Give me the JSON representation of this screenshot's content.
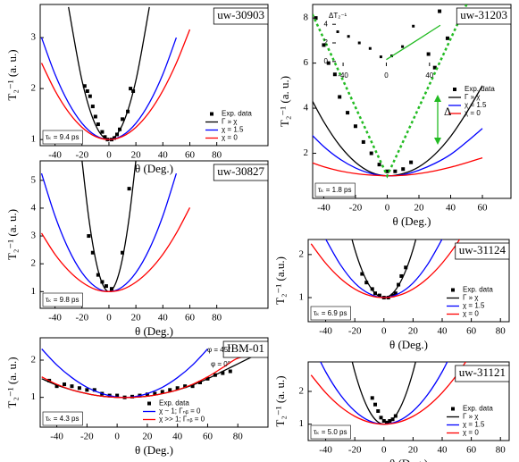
{
  "chart_data": [
    {
      "type": "line",
      "title": "uw-30903",
      "annotation": "τₖ = 9.4 ps",
      "xlabel": "θ (Deg.)",
      "ylabel": "T₂⁻¹ (a. u.)",
      "xlim": [
        -51,
        118
      ],
      "ylim": [
        0.88,
        3.65
      ],
      "xticks": [
        -40,
        -20,
        0,
        20,
        40,
        60,
        80
      ],
      "yticks": [
        1,
        2,
        3
      ],
      "legend": "lower right",
      "series": [
        {
          "name": "Exp. data",
          "color": "#000000",
          "marker": "square",
          "x": [
            -18,
            -16,
            -14,
            -12,
            -10,
            -8,
            -5,
            -3,
            -1,
            2,
            4,
            6,
            8,
            10,
            14,
            16,
            18
          ],
          "values": [
            2.05,
            1.95,
            1.85,
            1.65,
            1.45,
            1.3,
            1.15,
            1.05,
            1.0,
            1.0,
            1.03,
            1.1,
            1.2,
            1.4,
            1.55,
            2.0,
            1.95
          ]
        },
        {
          "name": "Γ » χ",
          "color": "#000000",
          "x": [
            -30,
            -20,
            -10,
            0,
            10,
            20,
            30
          ],
          "values": [
            3.6,
            2.16,
            1.29,
            1,
            1.29,
            2.16,
            3.6
          ]
        },
        {
          "name": "χ = 1.5",
          "color": "#0000ff",
          "x": [
            -50,
            -40,
            -30,
            -20,
            -10,
            0,
            10,
            20,
            30,
            40,
            50
          ],
          "values": [
            3.0,
            2.28,
            1.72,
            1.32,
            1.08,
            1,
            1.08,
            1.32,
            1.72,
            2.28,
            3.0
          ]
        },
        {
          "name": "χ = 0",
          "color": "#ff0000",
          "x": [
            -50,
            -40,
            -30,
            -20,
            -10,
            0,
            10,
            20,
            30,
            40,
            50,
            60
          ],
          "values": [
            2.5,
            1.96,
            1.54,
            1.24,
            1.06,
            1,
            1.06,
            1.24,
            1.54,
            1.96,
            2.5,
            3.16
          ]
        }
      ]
    },
    {
      "type": "line",
      "title": "uw-30827",
      "annotation": "τₖ = 9.8 ps",
      "xlabel": "θ (Deg.)",
      "ylabel": "T₂⁻¹ (a. u.)",
      "xlim": [
        -51,
        118
      ],
      "ylim": [
        0.4,
        5.7
      ],
      "xticks": [
        -40,
        -20,
        0,
        20,
        40,
        60,
        80
      ],
      "yticks": [
        1,
        2,
        3,
        4,
        5
      ],
      "series": [
        {
          "color": "#000000",
          "marker": "square",
          "x": [
            -15,
            -12,
            -8,
            -5,
            -2,
            2,
            10,
            15
          ],
          "values": [
            3.0,
            2.4,
            1.6,
            1.35,
            1.2,
            1.1,
            2.4,
            4.7
          ]
        },
        {
          "color": "#000000",
          "x": [
            -20,
            -15,
            -10,
            -5,
            0,
            5,
            10,
            15,
            20
          ],
          "values": [
            5.72,
            3.66,
            2.18,
            1.3,
            1,
            1.3,
            2.18,
            3.66,
            5.72
          ]
        },
        {
          "color": "#0000ff",
          "x": [
            -50,
            -40,
            -30,
            -20,
            -10,
            0,
            10,
            20,
            30,
            40,
            50
          ],
          "values": [
            5.25,
            3.72,
            2.53,
            1.68,
            1.17,
            1,
            1.17,
            1.68,
            2.53,
            3.72,
            5.25
          ]
        },
        {
          "color": "#ff0000",
          "x": [
            -50,
            -40,
            -30,
            -20,
            -10,
            0,
            10,
            20,
            30,
            40,
            50,
            60
          ],
          "values": [
            3.1,
            2.34,
            1.76,
            1.34,
            1.08,
            1,
            1.08,
            1.34,
            1.76,
            2.34,
            3.1,
            4.02
          ]
        }
      ]
    },
    {
      "type": "line",
      "title": "IBM-01",
      "annotation": "τₖ = 4.3 ps",
      "xlabel": "θ (Deg.)",
      "ylabel": "T₂⁻¹ (a. u.)",
      "xlim": [
        -51,
        100
      ],
      "ylim": [
        0.2,
        2.6
      ],
      "xticks": [
        -40,
        -20,
        0,
        20,
        40,
        60,
        80
      ],
      "yticks": [
        1,
        2
      ],
      "legend": "lower right",
      "notes": [
        "φ = 45°",
        "φ = 0°"
      ],
      "series": [
        {
          "name": "Exp. data",
          "color": "#000000",
          "marker": "square",
          "x": [
            -45,
            -40,
            -35,
            -30,
            -25,
            -20,
            -15,
            -10,
            -5,
            0,
            5,
            10,
            15,
            20,
            25,
            30,
            35,
            40,
            45,
            50,
            55,
            60,
            65,
            70,
            75
          ],
          "values": [
            1.45,
            1.3,
            1.35,
            1.3,
            1.25,
            1.2,
            1.2,
            1.1,
            1.05,
            1.05,
            1.0,
            1.02,
            1.05,
            1.08,
            1.1,
            1.15,
            1.2,
            1.25,
            1.3,
            1.3,
            1.4,
            1.5,
            1.6,
            1.65,
            1.7
          ]
        },
        {
          "color": "#000000",
          "x": [
            -50,
            -40,
            -30,
            -20,
            -10,
            0,
            10,
            20,
            30,
            40,
            50,
            60,
            70,
            80,
            90
          ],
          "values": [
            1.5,
            1.33,
            1.2,
            1.1,
            1.03,
            1.0,
            1.0,
            1.03,
            1.1,
            1.2,
            1.33,
            1.5,
            1.7,
            1.9,
            2.1
          ]
        },
        {
          "name": "χ ~ 1; Γₙᵦ = 0",
          "color": "#0000ff",
          "x": [
            -50,
            -40,
            -30,
            -20,
            -10,
            0,
            10,
            20,
            30,
            40,
            50,
            60
          ],
          "values": [
            2.3,
            1.87,
            1.53,
            1.27,
            1.1,
            1.01,
            1.01,
            1.1,
            1.27,
            1.53,
            1.87,
            2.3
          ]
        },
        {
          "name": "χ >> 1; Γₙᵦ = 0",
          "color": "#ff0000",
          "x": [
            -50,
            -40,
            -30,
            -20,
            -10,
            0,
            10,
            20,
            30,
            40,
            50,
            60,
            70,
            80,
            90
          ],
          "values": [
            1.55,
            1.35,
            1.2,
            1.1,
            1.03,
            1,
            1.0,
            1.03,
            1.1,
            1.2,
            1.35,
            1.55,
            1.8,
            2.05,
            2.1
          ]
        }
      ]
    },
    {
      "type": "line",
      "title": "uw-31203",
      "annotation": "τₖ = 1.8 ps",
      "xlabel": "θ (Deg.)",
      "ylabel": "T₂⁻¹ (a. u.)",
      "xlim": [
        -47,
        78
      ],
      "ylim": [
        0,
        8.6
      ],
      "xticks": [
        -40,
        -20,
        0,
        20,
        40,
        60
      ],
      "yticks": [
        2,
        4,
        6,
        8
      ],
      "legend": "right",
      "notes": [
        "Δ"
      ],
      "series": [
        {
          "name": "Exp. data",
          "color": "#000000",
          "marker": "square",
          "x": [
            -50,
            -45,
            -40,
            -37,
            -33,
            -30,
            -25,
            -20,
            -15,
            -10,
            -5,
            0,
            5,
            10,
            15,
            26,
            30,
            33,
            38
          ],
          "values": [
            7.8,
            8.0,
            6.8,
            6.0,
            5.5,
            4.5,
            3.8,
            3.2,
            2.5,
            2.0,
            1.5,
            1.2,
            1.2,
            1.3,
            1.6,
            6.4,
            5.8,
            8.3,
            7.1
          ]
        },
        {
          "name": "Γ » χ",
          "color": "#000000",
          "x": [
            -50,
            -40,
            -30,
            -20,
            -10,
            0,
            10,
            20,
            30,
            40,
            50,
            60
          ],
          "values": [
            4.7,
            3.4,
            2.35,
            1.6,
            1.15,
            1,
            1.1,
            1.4,
            1.95,
            2.75,
            3.8,
            5.0
          ]
        },
        {
          "name": "χ = 1.5",
          "color": "#0000ff",
          "x": [
            -50,
            -40,
            -30,
            -20,
            -10,
            0,
            10,
            20,
            30,
            40,
            50,
            60
          ],
          "values": [
            3.0,
            2.3,
            1.75,
            1.35,
            1.1,
            1,
            1.05,
            1.25,
            1.55,
            1.95,
            2.5,
            3.1
          ]
        },
        {
          "name": "χ = 0",
          "color": "#ff0000",
          "x": [
            -50,
            -40,
            -30,
            -20,
            -10,
            0,
            10,
            20,
            30,
            40,
            50,
            60
          ],
          "values": [
            1.65,
            1.4,
            1.22,
            1.1,
            1.03,
            1,
            1.02,
            1.1,
            1.22,
            1.38,
            1.58,
            1.8
          ]
        },
        {
          "color": "#22bb22",
          "linestyle": "dotted",
          "straight": true,
          "x": [
            -50,
            0,
            50
          ],
          "values": [
            8.6,
            1,
            8.6
          ]
        }
      ],
      "inset": {
        "ylabel": "ΔT₂⁻¹",
        "xlim": [
          -50,
          60
        ],
        "ylim": [
          -0.5,
          4.5
        ],
        "xticks": [
          -40,
          0,
          40
        ],
        "yticks": [
          0,
          2,
          4
        ],
        "series": [
          {
            "color": "#000000",
            "marker": "square",
            "x": [
              -45,
              -35,
              -25,
              -15,
              -5,
              5,
              15,
              25
            ],
            "values": [
              3.2,
              2.7,
              2.0,
              1.4,
              0.5,
              0.6,
              1.6,
              3.8
            ]
          },
          {
            "color": "#22bb22",
            "straight": true,
            "x": [
              0,
              15,
              30,
              50
            ],
            "values": [
              0.2,
              1.3,
              2.4,
              3.9
            ]
          }
        ]
      }
    },
    {
      "type": "line",
      "title": "uw-31124",
      "annotation": "τₖ = 6.9 ps",
      "xlabel": "θ (Deg.)",
      "ylabel": "T₂⁻¹ (a.u.)",
      "xlim": [
        -52,
        86
      ],
      "ylim": [
        0.44,
        2.35
      ],
      "xticks": [
        -40,
        -20,
        0,
        20,
        40,
        60,
        80
      ],
      "yticks": [
        1,
        2
      ],
      "legend": "lower right",
      "series": [
        {
          "name": "Exp. data",
          "color": "#000000",
          "marker": "square",
          "x": [
            -15,
            -12,
            -8,
            -6,
            -3,
            0,
            3,
            6,
            8,
            10,
            12,
            15
          ],
          "values": [
            1.55,
            1.35,
            1.2,
            1.1,
            1.05,
            1.0,
            1.0,
            1.05,
            1.1,
            1.3,
            1.5,
            1.7
          ]
        },
        {
          "name": "Γ » χ",
          "color": "#000000",
          "x": [
            -25,
            -20,
            -15,
            -10,
            -5,
            0,
            5,
            10,
            15,
            20,
            25
          ],
          "values": [
            2.75,
            2.12,
            1.63,
            1.28,
            1.07,
            1,
            1.07,
            1.28,
            1.63,
            2.12,
            2.75
          ]
        },
        {
          "name": "χ = 1.5",
          "color": "#0000ff",
          "x": [
            -40,
            -30,
            -20,
            -10,
            0,
            10,
            20,
            30,
            40
          ],
          "values": [
            2.36,
            1.77,
            1.34,
            1.09,
            1,
            1.09,
            1.34,
            1.77,
            2.36
          ]
        },
        {
          "name": "χ = 0",
          "color": "#ff0000",
          "x": [
            -50,
            -40,
            -30,
            -20,
            -10,
            0,
            10,
            20,
            30,
            40,
            50,
            60
          ],
          "values": [
            2.25,
            1.8,
            1.45,
            1.2,
            1.05,
            1,
            1.05,
            1.2,
            1.45,
            1.8,
            2.25,
            2.8
          ]
        }
      ]
    },
    {
      "type": "line",
      "title": "uw-31121",
      "annotation": "τₖ = 5.0 ps",
      "xlabel": "θ (Deg.)",
      "ylabel": "T₂⁻¹ (a. u.)",
      "xlim": [
        -52,
        86
      ],
      "ylim": [
        0.5,
        2.9
      ],
      "xticks": [
        -40,
        -20,
        0,
        20,
        40,
        60,
        80
      ],
      "yticks": [
        1,
        2
      ],
      "legend": "lower right",
      "series": [
        {
          "name": "Exp. data",
          "color": "#000000",
          "marker": "square",
          "x": [
            -8,
            -6,
            -4,
            -2,
            0,
            2,
            4,
            6,
            8
          ],
          "values": [
            1.8,
            1.6,
            1.4,
            1.2,
            1.1,
            1.05,
            1.1,
            1.15,
            1.25
          ]
        },
        {
          "name": "Γ » χ",
          "color": "#000000",
          "x": [
            -25,
            -20,
            -15,
            -10,
            -5,
            0,
            5,
            10,
            15,
            20,
            25
          ],
          "values": [
            3.5,
            2.6,
            1.9,
            1.4,
            1.1,
            1,
            1.1,
            1.4,
            1.9,
            2.6,
            3.5
          ]
        },
        {
          "name": "χ = 1.5",
          "color": "#0000ff",
          "x": [
            -50,
            -40,
            -30,
            -20,
            -10,
            0,
            10,
            20,
            30,
            40,
            50
          ],
          "values": [
            3.5,
            2.6,
            1.9,
            1.4,
            1.1,
            1,
            1.1,
            1.4,
            1.9,
            2.6,
            3.5
          ]
        },
        {
          "name": "χ = 0",
          "color": "#ff0000",
          "x": [
            -50,
            -40,
            -30,
            -20,
            -10,
            0,
            10,
            20,
            30,
            40,
            50,
            60
          ],
          "values": [
            2.5,
            1.96,
            1.54,
            1.24,
            1.06,
            1,
            1.06,
            1.24,
            1.54,
            1.96,
            2.5,
            3.16
          ]
        }
      ]
    }
  ]
}
